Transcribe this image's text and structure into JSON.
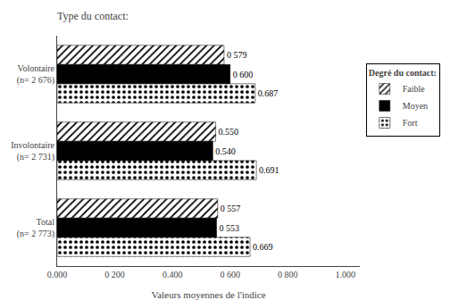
{
  "chart_data": {
    "type": "bar",
    "orientation": "horizontal",
    "title": "Type du contact:",
    "xlabel": "Valeurs moyennes de l'indice",
    "legend_title": "Degré du contact:",
    "categories": [
      "Volontaire\n(n= 2 676)",
      "Involontaire\n(n= 2 731)",
      "Total\n(n= 2 773)"
    ],
    "series": [
      {
        "name": "Faible",
        "color": "#ffffff",
        "values": [
          0.579,
          0.55,
          0.557
        ],
        "value_labels": [
          "0 579",
          "0.550",
          "0 557"
        ]
      },
      {
        "name": "Moyen",
        "color": "#000000",
        "values": [
          0.6,
          0.54,
          0.553
        ],
        "value_labels": [
          "0 600",
          "0.540",
          "0 553"
        ]
      },
      {
        "name": "Fort",
        "color": "#cccccc",
        "values": [
          0.687,
          0.691,
          0.669
        ],
        "value_labels": [
          "0.687",
          "0.691",
          "0.669"
        ]
      }
    ],
    "xlim": [
      0.0,
      1.05
    ],
    "xticks": [
      {
        "value": 0.0,
        "label": "0.000"
      },
      {
        "value": 0.2,
        "label": "0 200"
      },
      {
        "value": 0.4,
        "label": "0.400"
      },
      {
        "value": 0.6,
        "label": "0 600"
      },
      {
        "value": 0.8,
        "label": "0 800"
      },
      {
        "value": 1.0,
        "label": "1.000"
      }
    ],
    "grid": false,
    "legend": "right",
    "data_labels": true
  }
}
